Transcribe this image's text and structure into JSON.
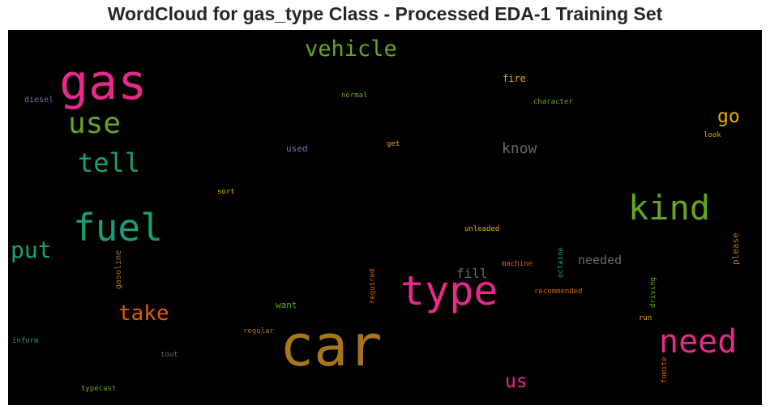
{
  "title": "WordCloud for gas_type Class - Processed EDA-1 Training Set",
  "words": [
    {
      "text": "gas",
      "color": "#e7298a"
    },
    {
      "text": "car",
      "color": "#a6761d"
    },
    {
      "text": "type",
      "color": "#e7298a"
    },
    {
      "text": "fuel",
      "color": "#1b9e77"
    },
    {
      "text": "kind",
      "color": "#66a61e"
    },
    {
      "text": "need",
      "color": "#e7298a"
    },
    {
      "text": "use",
      "color": "#66a61e"
    },
    {
      "text": "tell",
      "color": "#1b9e77"
    },
    {
      "text": "vehicle",
      "color": "#66a61e"
    },
    {
      "text": "put",
      "color": "#1b9e77"
    },
    {
      "text": "take",
      "color": "#d95f02"
    },
    {
      "text": "go",
      "color": "#e6ab02"
    },
    {
      "text": "know",
      "color": "#666666"
    },
    {
      "text": "us",
      "color": "#e7298a"
    },
    {
      "text": "fill",
      "color": "#666666"
    },
    {
      "text": "needed",
      "color": "#666666"
    },
    {
      "text": "fire",
      "color": "#e6ab02"
    },
    {
      "text": "diesel",
      "color": "#7570b3"
    },
    {
      "text": "normal",
      "color": "#66a61e"
    },
    {
      "text": "character",
      "color": "#66a61e"
    },
    {
      "text": "look",
      "color": "#e6ab02"
    },
    {
      "text": "used",
      "color": "#7570b3"
    },
    {
      "text": "get",
      "color": "#e6ab02"
    },
    {
      "text": "sort",
      "color": "#e6ab02"
    },
    {
      "text": "unleaded",
      "color": "#e6ab02"
    },
    {
      "text": "gasoline",
      "color": "#a6761d"
    },
    {
      "text": "required",
      "color": "#d95f02"
    },
    {
      "text": "machine",
      "color": "#d95f02"
    },
    {
      "text": "octaine",
      "color": "#1b9e77"
    },
    {
      "text": "please",
      "color": "#a6761d"
    },
    {
      "text": "want",
      "color": "#66a61e"
    },
    {
      "text": "recommended",
      "color": "#d95f02"
    },
    {
      "text": "driving",
      "color": "#66a61e"
    },
    {
      "text": "run",
      "color": "#e6ab02"
    },
    {
      "text": "regular",
      "color": "#a6761d"
    },
    {
      "text": "inform",
      "color": "#1b9e77"
    },
    {
      "text": "tout",
      "color": "#666666"
    },
    {
      "text": "fomite",
      "color": "#d95f02"
    },
    {
      "text": "typecast",
      "color": "#66a61e"
    }
  ]
}
